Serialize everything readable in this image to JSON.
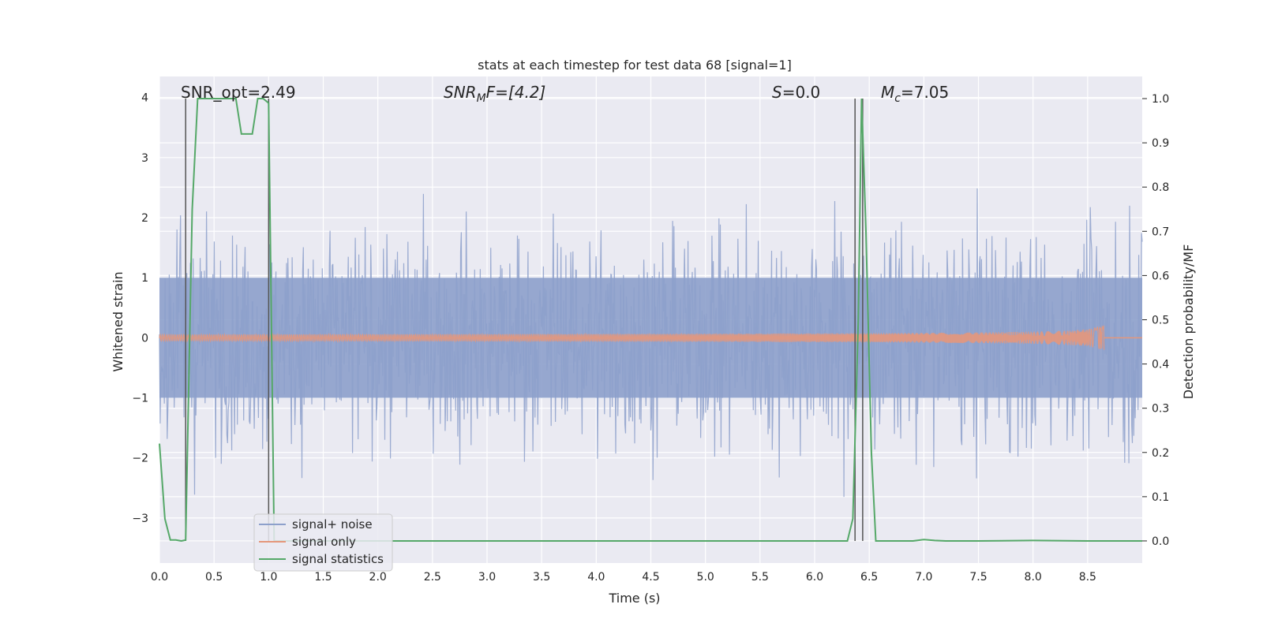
{
  "chart_data": {
    "type": "line",
    "title": "stats at each timestep for test data 68 [signal=1]",
    "xlabel": "Time (s)",
    "ylabel_left": "Whitened strain",
    "ylabel_right": "Detection probability/MF",
    "xlim": [
      0.0,
      9.0
    ],
    "ylim_left": [
      -3.75,
      4.35
    ],
    "ylim_right": [
      -0.05,
      1.05
    ],
    "xticks": [
      "0.0",
      "0.5",
      "1.0",
      "1.5",
      "2.0",
      "2.5",
      "3.0",
      "3.5",
      "4.0",
      "4.5",
      "5.0",
      "5.5",
      "6.0",
      "6.5",
      "7.0",
      "7.5",
      "8.0",
      "8.5"
    ],
    "yticks_left": [
      "−3",
      "−2",
      "−1",
      "0",
      "1",
      "2",
      "3",
      "4"
    ],
    "yticks_right": [
      "0.0",
      "0.1",
      "0.2",
      "0.3",
      "0.4",
      "0.5",
      "0.6",
      "0.7",
      "0.8",
      "0.9",
      "1.0"
    ],
    "grid": true,
    "legend_position": "lower-left",
    "annotations": {
      "snr_opt": "SNR_opt=2.49",
      "snr_mf_label": "SNR",
      "snr_mf_sub": "M",
      "snr_mf_tail": "F=[4.2]",
      "s_label": "S",
      "s_value": "=0.0",
      "mc_label": "M",
      "mc_sub": "c",
      "mc_value": "=7.05"
    },
    "vertical_markers_s": [
      0.24,
      1.0,
      6.37,
      6.44
    ],
    "series": [
      {
        "name": "signal+ noise",
        "color": "#8da0cb",
        "axis": "left",
        "style": "dense noise",
        "core_band": [
          -1.0,
          1.0
        ],
        "typical_extremes": [
          -3.0,
          3.0
        ]
      },
      {
        "name": "signal only",
        "color": "#e5977b",
        "axis": "left",
        "style": "chirp",
        "amplitude_at_8_65_s": 0.25,
        "ends_s": 8.65
      },
      {
        "name": "signal statistics",
        "color": "#55a868",
        "axis": "right",
        "x": [
          0.0,
          0.05,
          0.1,
          0.15,
          0.2,
          0.24,
          0.3,
          0.35,
          0.4,
          0.5,
          0.6,
          0.65,
          0.7,
          0.75,
          0.8,
          0.85,
          0.9,
          0.95,
          1.0,
          1.05,
          1.1,
          1.5,
          2.0,
          3.0,
          4.0,
          5.0,
          6.0,
          6.3,
          6.35,
          6.4,
          6.43,
          6.47,
          6.52,
          6.56,
          6.6,
          6.7,
          6.8,
          6.9,
          7.0,
          7.1,
          7.2,
          7.5,
          8.0,
          8.5,
          9.0
        ],
        "y": [
          0.22,
          0.05,
          0.002,
          0.002,
          0.0,
          0.002,
          0.75,
          1.0,
          1.0,
          1.0,
          1.0,
          1.0,
          1.0,
          0.92,
          0.92,
          0.92,
          1.0,
          1.0,
          0.99,
          0.0,
          0.0,
          0.0,
          0.0,
          0.0,
          0.0,
          0.0,
          0.0,
          0.0,
          0.05,
          0.5,
          1.0,
          0.7,
          0.2,
          0.0,
          0.0,
          0.0,
          0.0,
          0.0,
          0.003,
          0.001,
          0.0,
          0.0,
          0.001,
          0.0,
          0.0
        ]
      }
    ]
  }
}
